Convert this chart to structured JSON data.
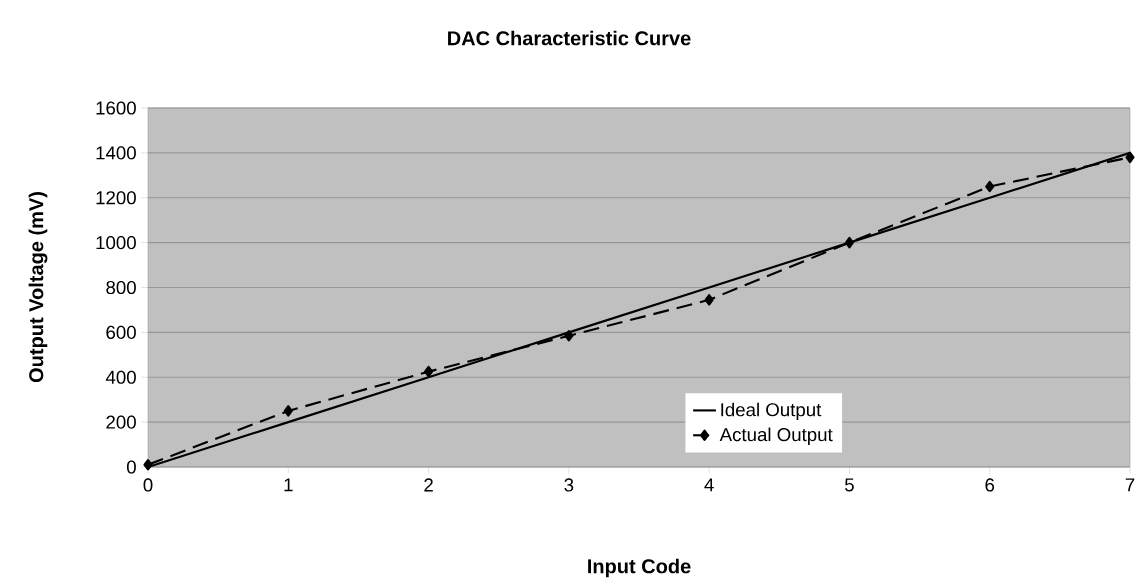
{
  "chart_data": {
    "type": "line",
    "title": "DAC Characteristic Curve",
    "xlabel": "Input Code",
    "ylabel": "Output Voltage (mV)",
    "x": [
      0,
      1,
      2,
      3,
      4,
      5,
      6,
      7
    ],
    "series": [
      {
        "name": "Ideal Output",
        "color": "#000000",
        "values": [
          0,
          200,
          400,
          600,
          800,
          1000,
          1200,
          1400
        ],
        "marker": "none",
        "line_style": "solid"
      },
      {
        "name": "Actual Output",
        "color": "#000000",
        "values": [
          10,
          250,
          425,
          585,
          745,
          1000,
          1250,
          1380
        ],
        "marker": "diamond",
        "line_style": "dashed"
      }
    ],
    "xlim": [
      0,
      7
    ],
    "ylim": [
      0,
      1600
    ],
    "xticks": [
      0,
      1,
      2,
      3,
      4,
      5,
      6,
      7
    ],
    "yticks": [
      0,
      200,
      400,
      600,
      800,
      1000,
      1200,
      1400,
      1600
    ],
    "grid": "y",
    "legend": "bottom right"
  }
}
